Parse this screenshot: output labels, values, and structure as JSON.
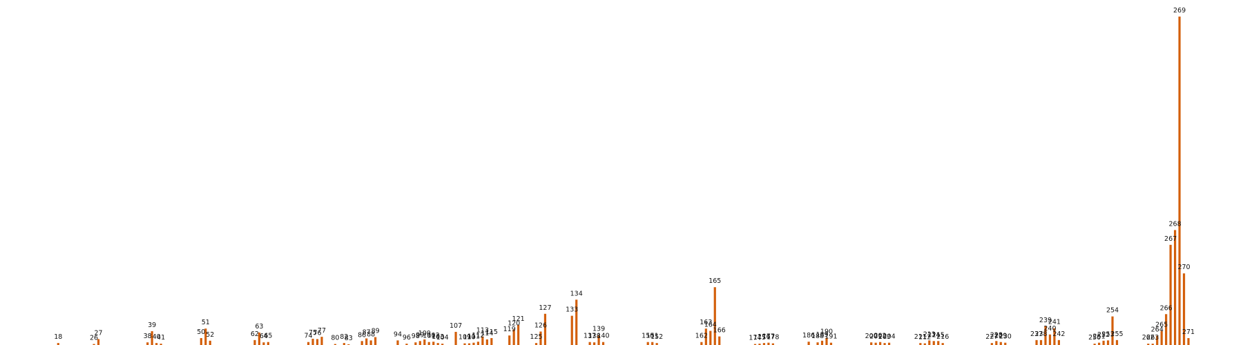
{
  "chart_data": {
    "type": "bar",
    "bar_color": "#d35f0b",
    "value_labels": "id-above-bar",
    "axes": "hidden",
    "ylim": [
      0,
      1.0
    ],
    "bars": [
      {
        "id": 18,
        "value": 0.006
      },
      {
        "id": 26,
        "value": 0.003
      },
      {
        "id": 27,
        "value": 0.018
      },
      {
        "id": 38,
        "value": 0.008
      },
      {
        "id": 39,
        "value": 0.042
      },
      {
        "id": 40,
        "value": 0.006
      },
      {
        "id": 41,
        "value": 0.004
      },
      {
        "id": 50,
        "value": 0.021
      },
      {
        "id": 51,
        "value": 0.05
      },
      {
        "id": 52,
        "value": 0.013
      },
      {
        "id": 62,
        "value": 0.015
      },
      {
        "id": 63,
        "value": 0.038
      },
      {
        "id": 64,
        "value": 0.008
      },
      {
        "id": 65,
        "value": 0.009
      },
      {
        "id": 74,
        "value": 0.009
      },
      {
        "id": 75,
        "value": 0.019
      },
      {
        "id": 76,
        "value": 0.018
      },
      {
        "id": 77,
        "value": 0.025
      },
      {
        "id": 80,
        "value": 0.003
      },
      {
        "id": 82,
        "value": 0.006
      },
      {
        "id": 83,
        "value": 0.002
      },
      {
        "id": 86,
        "value": 0.012
      },
      {
        "id": 87,
        "value": 0.02
      },
      {
        "id": 88,
        "value": 0.014
      },
      {
        "id": 89,
        "value": 0.024
      },
      {
        "id": 94,
        "value": 0.014
      },
      {
        "id": 96,
        "value": 0.004
      },
      {
        "id": 98,
        "value": 0.008
      },
      {
        "id": 99,
        "value": 0.012
      },
      {
        "id": 100,
        "value": 0.017
      },
      {
        "id": 101,
        "value": 0.009
      },
      {
        "id": 102,
        "value": 0.01
      },
      {
        "id": 103,
        "value": 0.006
      },
      {
        "id": 104,
        "value": 0.004
      },
      {
        "id": 107,
        "value": 0.04
      },
      {
        "id": 109,
        "value": 0.005
      },
      {
        "id": 110,
        "value": 0.005
      },
      {
        "id": 111,
        "value": 0.007
      },
      {
        "id": 112,
        "value": 0.01
      },
      {
        "id": 113,
        "value": 0.026
      },
      {
        "id": 114,
        "value": 0.017
      },
      {
        "id": 115,
        "value": 0.021
      },
      {
        "id": 119,
        "value": 0.029
      },
      {
        "id": 120,
        "value": 0.047
      },
      {
        "id": 121,
        "value": 0.061
      },
      {
        "id": 125,
        "value": 0.006
      },
      {
        "id": 126,
        "value": 0.041
      },
      {
        "id": 127,
        "value": 0.095
      },
      {
        "id": 133,
        "value": 0.089
      },
      {
        "id": 134,
        "value": 0.138
      },
      {
        "id": 137,
        "value": 0.009
      },
      {
        "id": 138,
        "value": 0.008
      },
      {
        "id": 139,
        "value": 0.03
      },
      {
        "id": 140,
        "value": 0.009
      },
      {
        "id": 150,
        "value": 0.009
      },
      {
        "id": 151,
        "value": 0.009
      },
      {
        "id": 152,
        "value": 0.006
      },
      {
        "id": 162,
        "value": 0.009
      },
      {
        "id": 163,
        "value": 0.05
      },
      {
        "id": 164,
        "value": 0.043
      },
      {
        "id": 165,
        "value": 0.176
      },
      {
        "id": 166,
        "value": 0.026
      },
      {
        "id": 174,
        "value": 0.003
      },
      {
        "id": 175,
        "value": 0.004
      },
      {
        "id": 176,
        "value": 0.006
      },
      {
        "id": 177,
        "value": 0.007
      },
      {
        "id": 178,
        "value": 0.005
      },
      {
        "id": 186,
        "value": 0.01
      },
      {
        "id": 188,
        "value": 0.008
      },
      {
        "id": 189,
        "value": 0.013
      },
      {
        "id": 190,
        "value": 0.022
      },
      {
        "id": 191,
        "value": 0.007
      },
      {
        "id": 200,
        "value": 0.008
      },
      {
        "id": 201,
        "value": 0.007
      },
      {
        "id": 202,
        "value": 0.009
      },
      {
        "id": 203,
        "value": 0.006
      },
      {
        "id": 204,
        "value": 0.007
      },
      {
        "id": 211,
        "value": 0.006
      },
      {
        "id": 212,
        "value": 0.005
      },
      {
        "id": 213,
        "value": 0.014
      },
      {
        "id": 214,
        "value": 0.012
      },
      {
        "id": 215,
        "value": 0.012
      },
      {
        "id": 216,
        "value": 0.006
      },
      {
        "id": 227,
        "value": 0.006
      },
      {
        "id": 228,
        "value": 0.012
      },
      {
        "id": 229,
        "value": 0.009
      },
      {
        "id": 230,
        "value": 0.007
      },
      {
        "id": 237,
        "value": 0.015
      },
      {
        "id": 238,
        "value": 0.015
      },
      {
        "id": 239,
        "value": 0.057
      },
      {
        "id": 240,
        "value": 0.032
      },
      {
        "id": 241,
        "value": 0.051
      },
      {
        "id": 242,
        "value": 0.015
      },
      {
        "id": 250,
        "value": 0.004
      },
      {
        "id": 251,
        "value": 0.007
      },
      {
        "id": 252,
        "value": 0.013
      },
      {
        "id": 253,
        "value": 0.014
      },
      {
        "id": 254,
        "value": 0.087
      },
      {
        "id": 255,
        "value": 0.015
      },
      {
        "id": 262,
        "value": 0.004
      },
      {
        "id": 263,
        "value": 0.004
      },
      {
        "id": 264,
        "value": 0.028
      },
      {
        "id": 265,
        "value": 0.043
      },
      {
        "id": 266,
        "value": 0.094
      },
      {
        "id": 267,
        "value": 0.305
      },
      {
        "id": 268,
        "value": 0.35
      },
      {
        "id": 269,
        "value": 1.0
      },
      {
        "id": 270,
        "value": 0.218
      },
      {
        "id": 271,
        "value": 0.021
      }
    ]
  }
}
